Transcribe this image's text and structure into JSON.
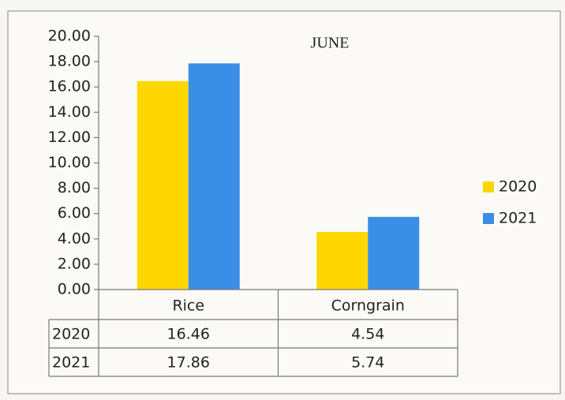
{
  "chart_data": {
    "type": "bar",
    "title": "JUNE",
    "categories": [
      "Rice",
      "Corngrain"
    ],
    "series": [
      {
        "name": "2020",
        "color": "#ffd700",
        "values": [
          16.46,
          4.54
        ]
      },
      {
        "name": "2021",
        "color": "#3a8ee6",
        "values": [
          17.86,
          5.74
        ]
      }
    ],
    "ylim": [
      0,
      20
    ],
    "yticks": [
      {
        "value": 0,
        "label": "0.00"
      },
      {
        "value": 2,
        "label": "2.00"
      },
      {
        "value": 4,
        "label": "4.00"
      },
      {
        "value": 6,
        "label": "6.00"
      },
      {
        "value": 8,
        "label": "8.00"
      },
      {
        "value": 10,
        "label": "10.00"
      },
      {
        "value": 12,
        "label": "12.00"
      },
      {
        "value": 14,
        "label": "14.00"
      },
      {
        "value": 16,
        "label": "16.00"
      },
      {
        "value": 18,
        "label": "18.00"
      },
      {
        "value": 20,
        "label": "20.00"
      }
    ],
    "legend": "right",
    "data_table": true
  }
}
